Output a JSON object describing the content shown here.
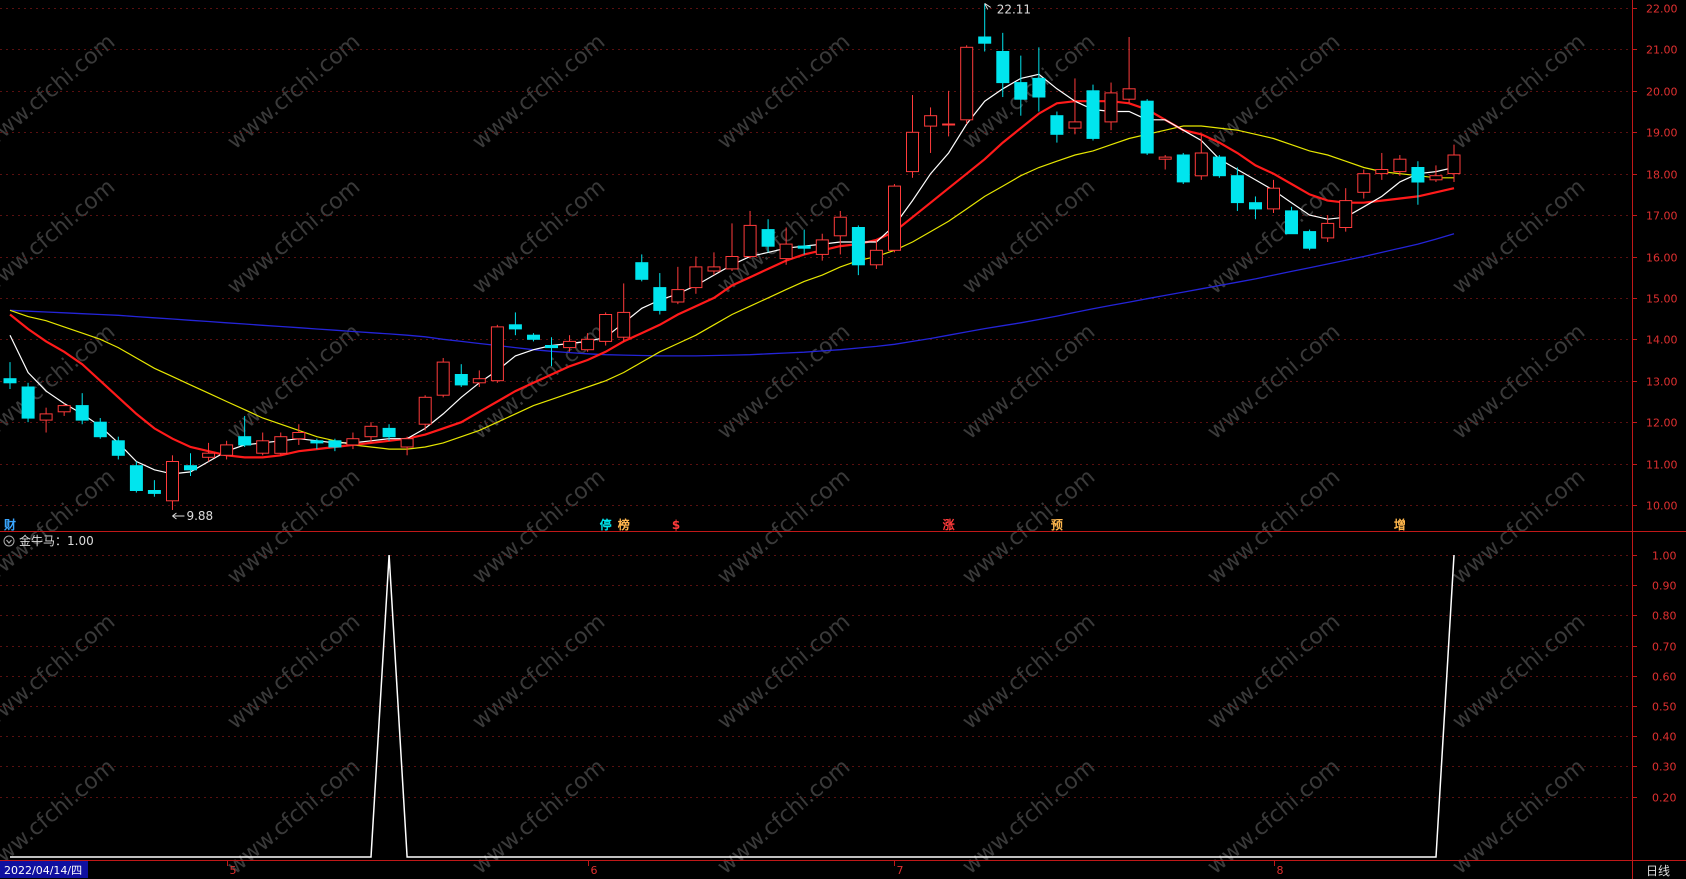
{
  "chart_data": [
    {
      "type": "candlestick",
      "title": "",
      "y_ticks": [
        "22.00",
        "21.00",
        "20.00",
        "19.00",
        "18.00",
        "17.00",
        "16.00",
        "15.00",
        "14.00",
        "13.00",
        "12.00",
        "11.00",
        "10.00"
      ],
      "ylim": [
        9.6,
        22.2
      ],
      "max_label": "22.11",
      "min_label": "9.88",
      "max_value": 22.11,
      "min_value": 9.88,
      "colors": {
        "up": "#ff3b3b",
        "down": "#00e5ee",
        "ma5": "#ffffff",
        "ma10": "#ff1a1a",
        "ma20": "#e6e600",
        "ma60": "#2424d8"
      },
      "candles": [
        {
          "o": 13.05,
          "h": 13.45,
          "l": 12.8,
          "c": 12.95
        },
        {
          "o": 12.85,
          "h": 12.95,
          "l": 12.0,
          "c": 12.1
        },
        {
          "o": 12.05,
          "h": 12.35,
          "l": 11.75,
          "c": 12.2
        },
        {
          "o": 12.25,
          "h": 12.45,
          "l": 12.15,
          "c": 12.4
        },
        {
          "o": 12.4,
          "h": 12.7,
          "l": 11.95,
          "c": 12.05
        },
        {
          "o": 12.0,
          "h": 12.1,
          "l": 11.6,
          "c": 11.65
        },
        {
          "o": 11.55,
          "h": 11.65,
          "l": 11.1,
          "c": 11.2
        },
        {
          "o": 10.95,
          "h": 11.05,
          "l": 10.3,
          "c": 10.35
        },
        {
          "o": 10.35,
          "h": 10.6,
          "l": 10.2,
          "c": 10.28
        },
        {
          "o": 10.1,
          "h": 11.2,
          "l": 9.88,
          "c": 11.05
        },
        {
          "o": 10.95,
          "h": 11.25,
          "l": 10.7,
          "c": 10.85
        },
        {
          "o": 11.15,
          "h": 11.5,
          "l": 11.05,
          "c": 11.25
        },
        {
          "o": 11.2,
          "h": 11.55,
          "l": 11.1,
          "c": 11.45
        },
        {
          "o": 11.65,
          "h": 12.15,
          "l": 11.4,
          "c": 11.45
        },
        {
          "o": 11.25,
          "h": 11.75,
          "l": 11.2,
          "c": 11.55
        },
        {
          "o": 11.25,
          "h": 11.75,
          "l": 11.2,
          "c": 11.65
        },
        {
          "o": 11.6,
          "h": 11.95,
          "l": 11.45,
          "c": 11.75
        },
        {
          "o": 11.55,
          "h": 11.6,
          "l": 11.35,
          "c": 11.5
        },
        {
          "o": 11.55,
          "h": 11.6,
          "l": 11.3,
          "c": 11.4
        },
        {
          "o": 11.45,
          "h": 11.75,
          "l": 11.35,
          "c": 11.6
        },
        {
          "o": 11.65,
          "h": 12.0,
          "l": 11.5,
          "c": 11.9
        },
        {
          "o": 11.85,
          "h": 11.95,
          "l": 11.55,
          "c": 11.65
        },
        {
          "o": 11.4,
          "h": 11.65,
          "l": 11.2,
          "c": 11.6
        },
        {
          "o": 11.95,
          "h": 12.65,
          "l": 11.8,
          "c": 12.6
        },
        {
          "o": 12.65,
          "h": 13.55,
          "l": 12.6,
          "c": 13.45
        },
        {
          "o": 13.15,
          "h": 13.4,
          "l": 12.85,
          "c": 12.9
        },
        {
          "o": 12.95,
          "h": 13.25,
          "l": 12.85,
          "c": 13.05
        },
        {
          "o": 13.0,
          "h": 14.35,
          "l": 12.95,
          "c": 14.3
        },
        {
          "o": 14.35,
          "h": 14.65,
          "l": 14.1,
          "c": 14.25
        },
        {
          "o": 14.1,
          "h": 14.15,
          "l": 13.95,
          "c": 14.0
        },
        {
          "o": 13.85,
          "h": 14.05,
          "l": 13.35,
          "c": 13.8
        },
        {
          "o": 13.8,
          "h": 14.1,
          "l": 13.7,
          "c": 13.95
        },
        {
          "o": 13.75,
          "h": 14.15,
          "l": 13.7,
          "c": 14.0
        },
        {
          "o": 13.95,
          "h": 14.65,
          "l": 13.85,
          "c": 14.6
        },
        {
          "o": 14.05,
          "h": 15.35,
          "l": 13.95,
          "c": 14.65
        },
        {
          "o": 15.85,
          "h": 16.05,
          "l": 15.4,
          "c": 15.45
        },
        {
          "o": 15.25,
          "h": 15.6,
          "l": 14.6,
          "c": 14.7
        },
        {
          "o": 14.9,
          "h": 15.75,
          "l": 14.85,
          "c": 15.2
        },
        {
          "o": 15.25,
          "h": 16.0,
          "l": 15.1,
          "c": 15.75
        },
        {
          "o": 15.65,
          "h": 16.1,
          "l": 15.55,
          "c": 15.75
        },
        {
          "o": 15.7,
          "h": 16.8,
          "l": 15.65,
          "c": 16.0
        },
        {
          "o": 16.0,
          "h": 17.1,
          "l": 15.95,
          "c": 16.75
        },
        {
          "o": 16.65,
          "h": 16.9,
          "l": 16.1,
          "c": 16.25
        },
        {
          "o": 15.95,
          "h": 16.7,
          "l": 15.8,
          "c": 16.3
        },
        {
          "o": 16.25,
          "h": 16.65,
          "l": 16.05,
          "c": 16.2
        },
        {
          "o": 16.05,
          "h": 16.55,
          "l": 15.9,
          "c": 16.4
        },
        {
          "o": 16.5,
          "h": 17.1,
          "l": 16.05,
          "c": 16.95
        },
        {
          "o": 16.7,
          "h": 16.75,
          "l": 15.55,
          "c": 15.8
        },
        {
          "o": 15.8,
          "h": 16.4,
          "l": 15.7,
          "c": 16.15
        },
        {
          "o": 16.15,
          "h": 17.75,
          "l": 16.1,
          "c": 17.7
        },
        {
          "o": 18.05,
          "h": 19.9,
          "l": 17.9,
          "c": 19.0
        },
        {
          "o": 19.15,
          "h": 19.6,
          "l": 18.5,
          "c": 19.4
        },
        {
          "o": 19.2,
          "h": 20.0,
          "l": 18.9,
          "c": 19.2
        },
        {
          "o": 19.3,
          "h": 21.1,
          "l": 19.2,
          "c": 21.05
        },
        {
          "o": 21.3,
          "h": 22.11,
          "l": 20.95,
          "c": 21.15
        },
        {
          "o": 20.95,
          "h": 21.4,
          "l": 19.85,
          "c": 20.2
        },
        {
          "o": 20.2,
          "h": 20.85,
          "l": 19.4,
          "c": 19.8
        },
        {
          "o": 20.3,
          "h": 21.05,
          "l": 19.5,
          "c": 19.85
        },
        {
          "o": 19.4,
          "h": 19.5,
          "l": 18.75,
          "c": 18.95
        },
        {
          "o": 19.1,
          "h": 20.3,
          "l": 18.95,
          "c": 19.25
        },
        {
          "o": 20.0,
          "h": 20.15,
          "l": 18.8,
          "c": 18.85
        },
        {
          "o": 19.25,
          "h": 20.2,
          "l": 19.05,
          "c": 19.95
        },
        {
          "o": 19.8,
          "h": 21.3,
          "l": 19.7,
          "c": 20.05
        },
        {
          "o": 19.75,
          "h": 19.8,
          "l": 18.45,
          "c": 18.5
        },
        {
          "o": 18.35,
          "h": 18.45,
          "l": 18.1,
          "c": 18.4
        },
        {
          "o": 18.45,
          "h": 18.5,
          "l": 17.75,
          "c": 17.8
        },
        {
          "o": 17.95,
          "h": 18.95,
          "l": 17.85,
          "c": 18.5
        },
        {
          "o": 18.4,
          "h": 18.45,
          "l": 17.9,
          "c": 17.95
        },
        {
          "o": 17.95,
          "h": 18.15,
          "l": 17.1,
          "c": 17.3
        },
        {
          "o": 17.3,
          "h": 17.45,
          "l": 16.9,
          "c": 17.15
        },
        {
          "o": 17.15,
          "h": 17.85,
          "l": 17.05,
          "c": 17.65
        },
        {
          "o": 17.1,
          "h": 17.2,
          "l": 16.55,
          "c": 16.55
        },
        {
          "o": 16.6,
          "h": 16.65,
          "l": 16.15,
          "c": 16.2
        },
        {
          "o": 16.45,
          "h": 17.0,
          "l": 16.35,
          "c": 16.8
        },
        {
          "o": 16.7,
          "h": 17.65,
          "l": 16.6,
          "c": 17.35
        },
        {
          "o": 17.55,
          "h": 18.1,
          "l": 17.4,
          "c": 18.0
        },
        {
          "o": 18.0,
          "h": 18.5,
          "l": 17.85,
          "c": 18.1
        },
        {
          "o": 18.05,
          "h": 18.45,
          "l": 17.95,
          "c": 18.35
        },
        {
          "o": 18.15,
          "h": 18.3,
          "l": 17.25,
          "c": 17.8
        },
        {
          "o": 17.85,
          "h": 18.2,
          "l": 17.8,
          "c": 17.95
        },
        {
          "o": 18.0,
          "h": 18.7,
          "l": 17.8,
          "c": 18.45
        }
      ],
      "ma5": [
        14.1,
        13.2,
        12.75,
        12.45,
        12.2,
        11.9,
        11.5,
        11.05,
        10.85,
        10.75,
        10.8,
        11.05,
        11.3,
        11.45,
        11.5,
        11.55,
        11.6,
        11.55,
        11.5,
        11.5,
        11.55,
        11.6,
        11.6,
        11.85,
        12.2,
        12.6,
        12.95,
        13.25,
        13.6,
        13.75,
        13.85,
        13.9,
        13.95,
        14.05,
        14.4,
        14.75,
        14.95,
        15.1,
        15.3,
        15.55,
        15.8,
        16.0,
        16.1,
        16.2,
        16.25,
        16.3,
        16.35,
        16.35,
        16.35,
        16.75,
        17.35,
        18.0,
        18.5,
        19.2,
        19.75,
        20.05,
        20.3,
        20.4,
        20.05,
        19.75,
        19.55,
        19.5,
        19.5,
        19.3,
        19.3,
        19.05,
        18.8,
        18.35,
        18.1,
        17.85,
        17.6,
        17.3,
        17.0,
        16.9,
        16.95,
        17.2,
        17.45,
        17.8,
        18.0,
        18.05,
        18.15
      ],
      "ma10": [
        14.6,
        14.25,
        13.95,
        13.7,
        13.4,
        13.0,
        12.6,
        12.2,
        11.85,
        11.6,
        11.4,
        11.3,
        11.2,
        11.15,
        11.15,
        11.2,
        11.3,
        11.35,
        11.4,
        11.45,
        11.5,
        11.55,
        11.6,
        11.7,
        11.85,
        12.0,
        12.25,
        12.5,
        12.75,
        12.95,
        13.15,
        13.35,
        13.5,
        13.7,
        13.95,
        14.15,
        14.35,
        14.6,
        14.8,
        15.0,
        15.3,
        15.5,
        15.7,
        15.9,
        16.05,
        16.15,
        16.25,
        16.3,
        16.4,
        16.6,
        16.95,
        17.3,
        17.65,
        18.0,
        18.35,
        18.75,
        19.1,
        19.45,
        19.7,
        19.75,
        19.75,
        19.75,
        19.7,
        19.55,
        19.3,
        19.05,
        18.95,
        18.75,
        18.5,
        18.2,
        18.0,
        17.75,
        17.5,
        17.35,
        17.3,
        17.3,
        17.35,
        17.4,
        17.45,
        17.55,
        17.65
      ],
      "ma20": [
        14.7,
        14.55,
        14.45,
        14.3,
        14.15,
        14.0,
        13.8,
        13.55,
        13.3,
        13.1,
        12.9,
        12.7,
        12.5,
        12.3,
        12.1,
        11.95,
        11.8,
        11.65,
        11.55,
        11.45,
        11.4,
        11.35,
        11.35,
        11.4,
        11.5,
        11.65,
        11.8,
        12.0,
        12.2,
        12.4,
        12.55,
        12.7,
        12.85,
        13.0,
        13.2,
        13.45,
        13.7,
        13.9,
        14.1,
        14.35,
        14.6,
        14.8,
        15.0,
        15.2,
        15.4,
        15.55,
        15.75,
        15.9,
        16.0,
        16.15,
        16.35,
        16.6,
        16.85,
        17.15,
        17.45,
        17.7,
        17.95,
        18.15,
        18.3,
        18.45,
        18.55,
        18.7,
        18.85,
        18.95,
        19.05,
        19.15,
        19.15,
        19.1,
        19.05,
        18.95,
        18.85,
        18.7,
        18.55,
        18.45,
        18.3,
        18.15,
        18.05,
        18.0,
        17.95,
        17.9,
        17.9
      ],
      "ma60": [
        14.7,
        14.68,
        14.66,
        14.64,
        14.62,
        14.6,
        14.58,
        14.55,
        14.52,
        14.49,
        14.46,
        14.43,
        14.4,
        14.37,
        14.34,
        14.31,
        14.28,
        14.25,
        14.22,
        14.19,
        14.16,
        14.13,
        14.1,
        14.06,
        14.0,
        13.95,
        13.9,
        13.85,
        13.8,
        13.75,
        13.71,
        13.68,
        13.65,
        13.63,
        13.62,
        13.61,
        13.6,
        13.6,
        13.6,
        13.61,
        13.62,
        13.63,
        13.65,
        13.67,
        13.69,
        13.72,
        13.75,
        13.79,
        13.83,
        13.88,
        13.95,
        14.02,
        14.1,
        14.18,
        14.26,
        14.33,
        14.4,
        14.48,
        14.56,
        14.65,
        14.74,
        14.82,
        14.9,
        14.98,
        15.06,
        15.14,
        15.22,
        15.3,
        15.38,
        15.46,
        15.55,
        15.64,
        15.73,
        15.82,
        15.91,
        16.0,
        16.1,
        16.2,
        16.3,
        16.42,
        16.55
      ]
    },
    {
      "type": "line",
      "title": "金牛马：1.00",
      "y_ticks": [
        "1.00",
        "0.90",
        "0.80",
        "0.70",
        "0.60",
        "0.50",
        "0.40",
        "0.30",
        "0.20"
      ],
      "ylim": [
        0,
        1
      ],
      "series": [
        {
          "values": [
            0,
            0,
            0,
            0,
            0,
            0,
            0,
            0,
            0,
            0,
            0,
            0,
            0,
            0,
            0,
            0,
            0,
            0,
            0,
            0,
            0,
            1,
            0,
            0,
            0,
            0,
            0,
            0,
            0,
            0,
            0,
            0,
            0,
            0,
            0,
            0,
            0,
            0,
            0,
            0,
            0,
            0,
            0,
            0,
            0,
            0,
            0,
            0,
            0,
            0,
            0,
            0,
            0,
            0,
            0,
            0,
            0,
            0,
            0,
            0,
            0,
            0,
            0,
            0,
            0,
            0,
            0,
            0,
            0,
            0,
            0,
            0,
            0,
            0,
            0,
            0,
            0,
            0,
            0,
            0,
            1
          ]
        }
      ]
    }
  ],
  "markers": [
    {
      "index": 0,
      "text": "财",
      "color": "#39a6ff"
    },
    {
      "index": 33,
      "text": "停",
      "color": "#00e5ee"
    },
    {
      "index": 34,
      "text": "榜",
      "color": "#ffb74d"
    },
    {
      "index": 37,
      "text": "$",
      "color": "#ff3b3b"
    },
    {
      "index": 52,
      "text": "涨",
      "color": "#ff3b3b"
    },
    {
      "index": 58,
      "text": "预",
      "color": "#ffb74d"
    },
    {
      "index": 77,
      "text": "增",
      "color": "#ffb74d"
    }
  ],
  "date_axis": {
    "current_date": "2022/04/14/四",
    "months": [
      {
        "index": 12,
        "label": "5"
      },
      {
        "index": 32,
        "label": "6"
      },
      {
        "index": 49,
        "label": "7"
      },
      {
        "index": 70,
        "label": "8"
      }
    ],
    "period": "日线"
  },
  "watermark": "www.cfchi.com"
}
